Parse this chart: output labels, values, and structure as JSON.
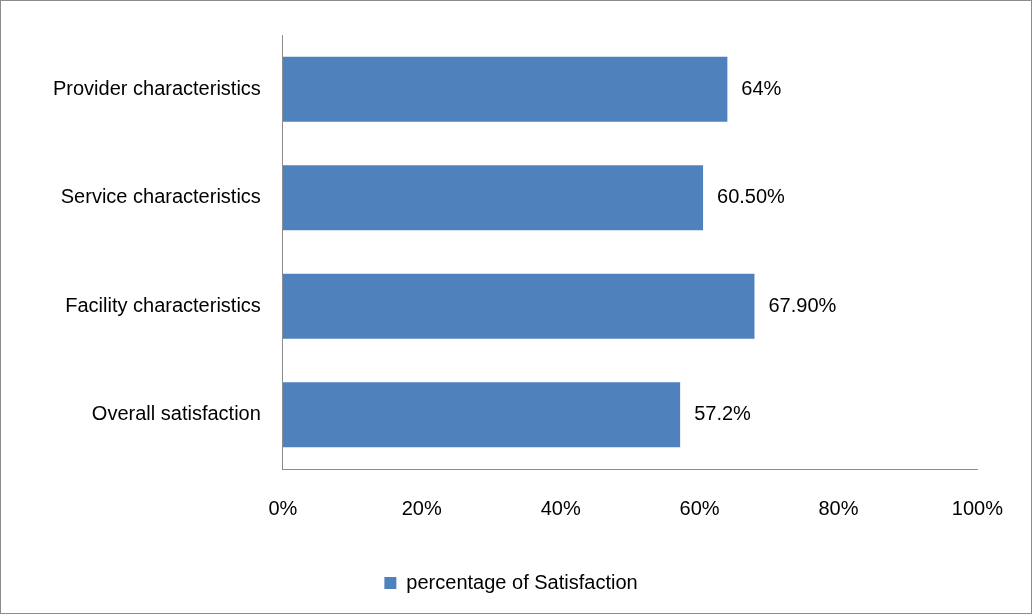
{
  "chart_data": {
    "type": "bar",
    "orientation": "horizontal",
    "categories": [
      "Provider characteristics",
      "Service characteristics",
      "Facility characteristics",
      "Overall satisfaction"
    ],
    "series": [
      {
        "name": "percentage of Satisfaction",
        "color": "#4f81bd",
        "values": [
          64,
          60.5,
          67.9,
          57.2
        ],
        "value_labels": [
          "64%",
          "60.50%",
          "67.90%",
          "57.2%"
        ]
      }
    ],
    "xlim": [
      0,
      100
    ],
    "xticks": [
      {
        "value": 0,
        "label": "0%"
      },
      {
        "value": 20,
        "label": "20%"
      },
      {
        "value": 40,
        "label": "40%"
      },
      {
        "value": 60,
        "label": "60%"
      },
      {
        "value": 80,
        "label": "80%"
      },
      {
        "value": 100,
        "label": "100%"
      }
    ],
    "grid": false,
    "legend": "bottom"
  }
}
